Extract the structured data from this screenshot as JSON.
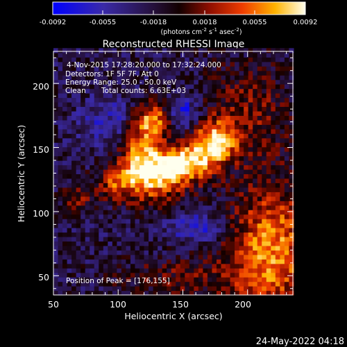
{
  "chart_data": {
    "type": "heatmap",
    "title": "Reconstructed RHESSI Image",
    "colorbar": {
      "ticks": [
        "-0.0092",
        "-0.0055",
        "-0.0018",
        "0.0018",
        "0.0055",
        "0.0092"
      ],
      "range": [
        -0.0092,
        0.0092
      ],
      "unit_text": "(photons cm",
      "unit_exp1": "-2",
      "unit_mid1": " s",
      "unit_exp2": "-1",
      "unit_mid2": " asec",
      "unit_exp3": "-2",
      "unit_end": ")"
    },
    "xlabel": "Heliocentric X (arcsec)",
    "ylabel": "Heliocentric Y (arcsec)",
    "xlim": [
      50,
      235
    ],
    "ylim": [
      35,
      225
    ],
    "xticks": [
      "50",
      "100",
      "150",
      "200"
    ],
    "yticks": [
      "50",
      "100",
      "150",
      "200"
    ],
    "annotations": {
      "time": "4-Nov-2015 17:28:20.000 to 17:32:24.000",
      "detectors": "Detectors: 1F 5F 7F, Att 0",
      "energy": "Energy Range: 25.0 - 50.0 keV",
      "algorithm": "Clean",
      "counts": "Total counts: 6.63E+03",
      "peak": "Position of Peak = [176,155]"
    },
    "sources": [
      {
        "x": 130,
        "y": 128,
        "sx": 16,
        "sy": 14,
        "a": 0.0085
      },
      {
        "x": 118,
        "y": 148,
        "sx": 11,
        "sy": 18,
        "a": 0.0078
      },
      {
        "x": 127,
        "y": 172,
        "sx": 10,
        "sy": 9,
        "a": 0.0075
      },
      {
        "x": 176,
        "y": 155,
        "sx": 11,
        "sy": 11,
        "a": 0.0092
      },
      {
        "x": 160,
        "y": 140,
        "sx": 12,
        "sy": 11,
        "a": 0.0072
      },
      {
        "x": 98,
        "y": 123,
        "sx": 11,
        "sy": 10,
        "a": 0.0055
      },
      {
        "x": 145,
        "y": 138,
        "sx": 9,
        "sy": 8,
        "a": 0.006
      },
      {
        "x": 218,
        "y": 70,
        "sx": 22,
        "sy": 35,
        "a": 0.0085
      },
      {
        "x": 200,
        "y": 178,
        "sx": 25,
        "sy": 28,
        "a": 0.0035
      },
      {
        "x": 68,
        "y": 110,
        "sx": 8,
        "sy": 8,
        "a": 0.0042
      },
      {
        "x": 148,
        "y": 48,
        "sx": 35,
        "sy": 12,
        "a": 0.003
      },
      {
        "x": 150,
        "y": 178,
        "sx": 8,
        "sy": 9,
        "a": -0.0055
      },
      {
        "x": 160,
        "y": 88,
        "sx": 14,
        "sy": 8,
        "a": -0.0045
      },
      {
        "x": 95,
        "y": 170,
        "sx": 18,
        "sy": 14,
        "a": -0.0035
      }
    ]
  },
  "footer": {
    "date": "24-May-2022 04:18"
  }
}
